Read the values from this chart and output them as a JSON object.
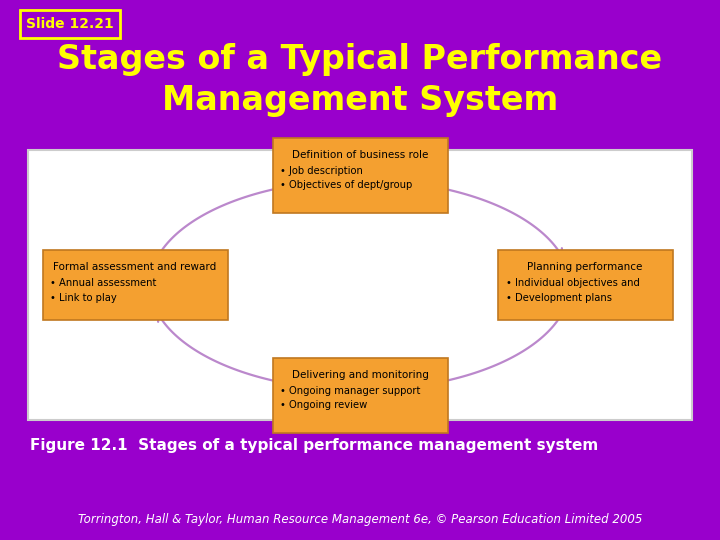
{
  "background_color": "#9900cc",
  "slide_label": "Slide 12.21",
  "slide_label_border": "#ffff00",
  "slide_label_fg": "#ffff00",
  "title_line1": "Stages of a Typical Performance",
  "title_line2": "Management System",
  "title_color": "#ffff00",
  "title_fontsize": 24,
  "diagram_bg": "#ffffff",
  "diagram_border": "#cccccc",
  "box_color": "#f4a030",
  "box_edge_color": "#c07820",
  "arrow_color": "#bb88cc",
  "arrow_lw": 1.6,
  "boxes": [
    {
      "id": "top",
      "title": "Definition of business role",
      "bullets": [
        "Job description",
        "Objectives of dept/group"
      ]
    },
    {
      "id": "right",
      "title": "Planning performance",
      "bullets": [
        "Individual objectives and",
        "Development plans"
      ]
    },
    {
      "id": "bottom",
      "title": "Delivering and monitoring",
      "bullets": [
        "Ongoing manager support",
        "Ongoing review"
      ]
    },
    {
      "id": "left",
      "title": "Formal assessment and reward",
      "bullets": [
        "Annual assessment",
        "Link to play"
      ]
    }
  ],
  "figure_caption": "Figure 12.1  Stages of a typical performance management system",
  "figure_caption_color": "#ffffff",
  "figure_caption_fontsize": 11,
  "footer_normal": "Torrington, Hall & Taylor, ",
  "footer_italic": "Human Resource Management",
  "footer_end": " 6e, © Pearson Education Limited 2005",
  "footer_color": "#ffffff",
  "footer_fontsize": 8.5
}
